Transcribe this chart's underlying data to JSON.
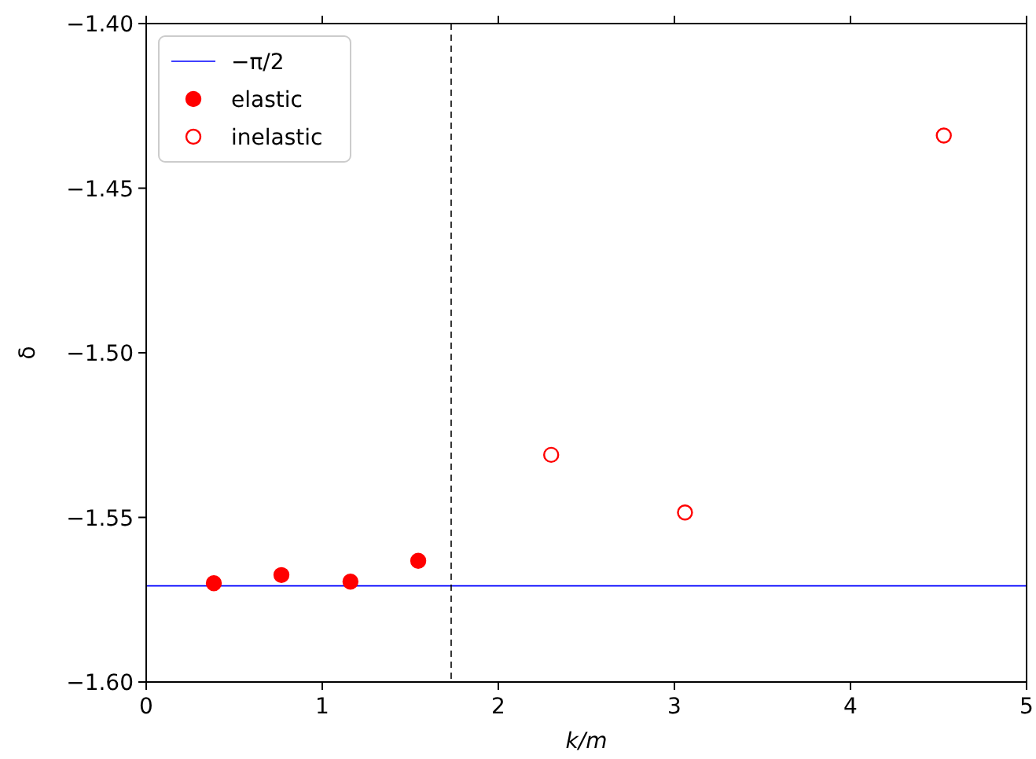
{
  "chart_data": {
    "type": "scatter",
    "xlabel": "k/m",
    "ylabel": "δ",
    "xlim": [
      0,
      5
    ],
    "ylim": [
      -1.6,
      -1.4
    ],
    "xticks": [
      0,
      1,
      2,
      3,
      4,
      5
    ],
    "yticks": [
      {
        "value": -1.6,
        "label": "−1.60"
      },
      {
        "value": -1.55,
        "label": "−1.55"
      },
      {
        "value": -1.5,
        "label": "−1.50"
      },
      {
        "value": -1.45,
        "label": "−1.45"
      },
      {
        "value": -1.4,
        "label": "−1.40"
      }
    ],
    "grid": false,
    "legend": "top left",
    "marker": "circle",
    "ref_lines": [
      {
        "axis": "y",
        "value": -1.5708,
        "label": "−π/2",
        "color": "#0000ff",
        "line_style": "solid"
      },
      {
        "axis": "x",
        "value": 1.732,
        "color": "#000000",
        "line_style": "dashed"
      }
    ],
    "series": [
      {
        "name": "elastic",
        "color": "#ff0000",
        "x": [
          0.384,
          0.768,
          1.16,
          1.545
        ],
        "values": [
          -1.57,
          -1.5675,
          -1.5695,
          -1.5632
        ]
      },
      {
        "name": "inelastic",
        "color": "#ff0000",
        "marker": "circle-open",
        "x": [
          2.3,
          3.06,
          4.53
        ],
        "values": [
          -1.531,
          -1.5485,
          -1.434
        ]
      }
    ]
  }
}
